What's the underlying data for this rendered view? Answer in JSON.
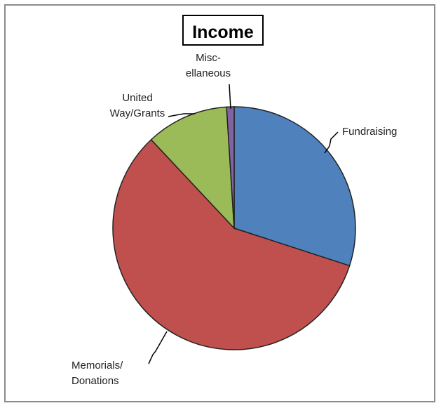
{
  "chart_data": {
    "type": "pie",
    "title": "Income",
    "categories": [
      "Fundraising",
      "Memorials/ Donations",
      "United Way/Grants",
      "Misc- ellaneous"
    ],
    "values": [
      30,
      58,
      11,
      1
    ],
    "value_unit": "percent (estimated)",
    "start_angle_deg": 0,
    "direction": "clockwise",
    "legend": "none",
    "labels": [
      {
        "lines": [
          "Fundraising"
        ]
      },
      {
        "lines": [
          "Memorials/",
          "Donations"
        ]
      },
      {
        "lines": [
          "United",
          "Way/Grants"
        ]
      },
      {
        "lines": [
          "Misc-",
          "ellaneous"
        ]
      }
    ]
  },
  "colors": {
    "slices": [
      "#4f81bd",
      "#c0504d",
      "#9bbb59",
      "#8064a2"
    ],
    "border": "#8c8c8c"
  }
}
